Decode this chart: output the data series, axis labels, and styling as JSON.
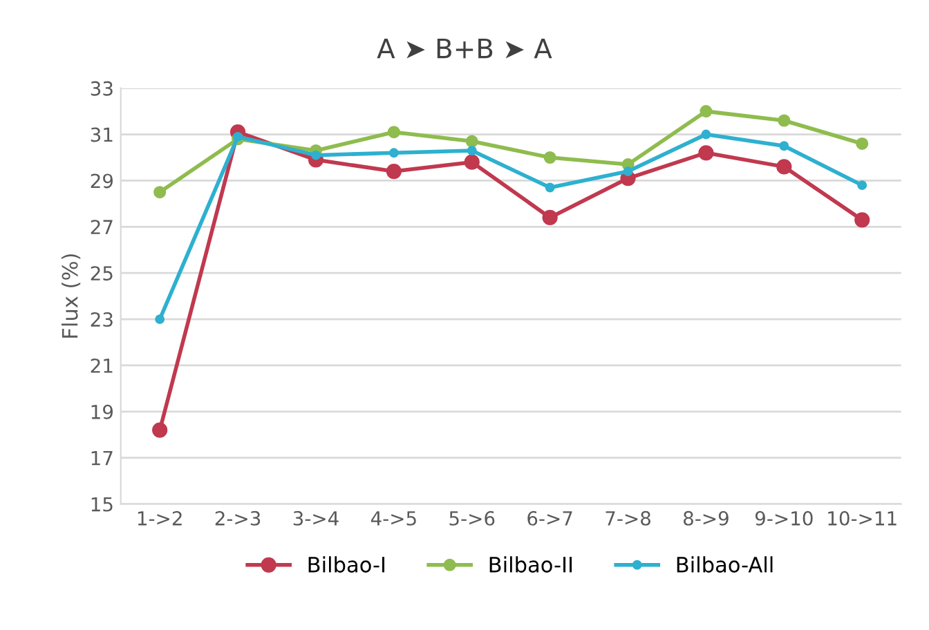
{
  "chart_data": {
    "type": "line",
    "title": "A ➤ B+B ➤ A",
    "ylabel": "Flux (%)",
    "categories": [
      "1->2",
      "2->3",
      "3->4",
      "4->5",
      "5->6",
      "6->7",
      "7->8",
      "8->9",
      "9->10",
      "10->11"
    ],
    "series": [
      {
        "name": "Bilbao-I",
        "color": "#c0394f",
        "values": [
          18.2,
          31.1,
          29.9,
          29.4,
          29.8,
          27.4,
          29.1,
          30.2,
          29.6,
          27.3
        ]
      },
      {
        "name": "Bilbao-II",
        "color": "#8fbc4e",
        "values": [
          28.5,
          30.8,
          30.3,
          31.1,
          30.7,
          30.0,
          29.7,
          32.0,
          31.6,
          30.6
        ]
      },
      {
        "name": "Bilbao-All",
        "color": "#2eb0d0",
        "values": [
          23.0,
          30.9,
          30.1,
          30.2,
          30.3,
          28.7,
          29.4,
          31.0,
          30.5,
          28.8
        ]
      }
    ],
    "ylim": [
      15,
      33
    ],
    "yticks": [
      15,
      17,
      19,
      21,
      23,
      25,
      27,
      29,
      31,
      33
    ],
    "grid": "y",
    "legend": "bottom",
    "marker": "circle",
    "line_style": "solid"
  }
}
